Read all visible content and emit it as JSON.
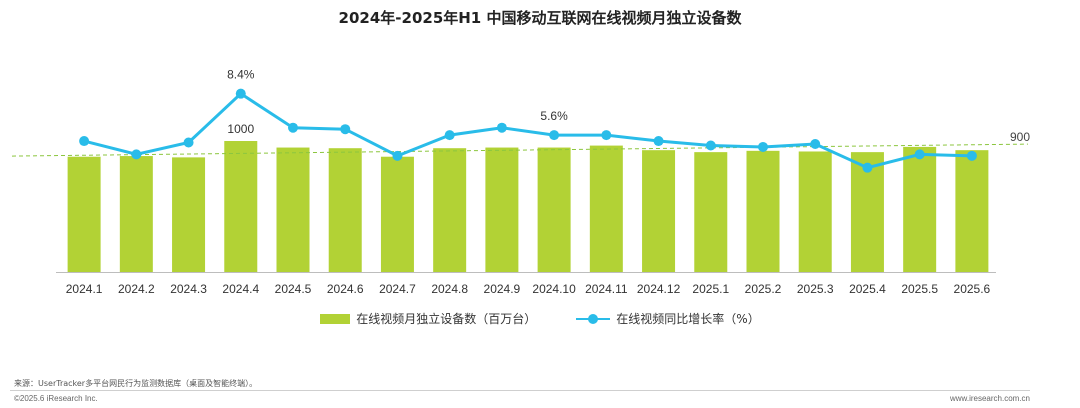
{
  "chart_data": {
    "type": "bar+line",
    "title": "2024年-2025年H1 中国移动互联网在线视频月独立设备数",
    "categories": [
      "2024.1",
      "2024.2",
      "2024.3",
      "2024.4",
      "2024.5",
      "2024.6",
      "2024.7",
      "2024.8",
      "2024.9",
      "2024.10",
      "2024.11",
      "2024.12",
      "2025.1",
      "2025.2",
      "2025.3",
      "2025.4",
      "2025.5",
      "2025.6"
    ],
    "series": [
      {
        "name": "在线视频月独立设备数（百万台）",
        "type": "bar",
        "color": "#b2d235",
        "values": [
          880,
          885,
          875,
          1000,
          950,
          945,
          880,
          945,
          950,
          950,
          965,
          930,
          915,
          925,
          920,
          915,
          955,
          930
        ]
      },
      {
        "name": "在线视频同比增长率（%）",
        "type": "line",
        "color": "#29bce9",
        "values": [
          5.2,
          4.3,
          5.1,
          8.4,
          6.1,
          6.0,
          4.2,
          5.6,
          6.1,
          5.6,
          5.6,
          5.2,
          4.9,
          4.8,
          5.0,
          3.4,
          4.3,
          4.2
        ]
      }
    ],
    "data_labels": [
      {
        "series": "bar",
        "category": "2024.4",
        "text": "1000"
      },
      {
        "series": "line",
        "category": "2024.4",
        "text": "8.4%"
      },
      {
        "series": "line",
        "category": "2024.10",
        "text": "5.6%"
      }
    ],
    "reference_line": {
      "value": 900,
      "label": "900",
      "color": "#8cc63f",
      "style": "dashed"
    },
    "legend_position": "bottom",
    "grid": false
  },
  "footer": {
    "source": "来源：UserTracker多平台网民行为监测数据库（桌面及智能终端）。",
    "copyright": "©2025.6 iResearch Inc.",
    "website": "www.iresearch.com.cn"
  }
}
